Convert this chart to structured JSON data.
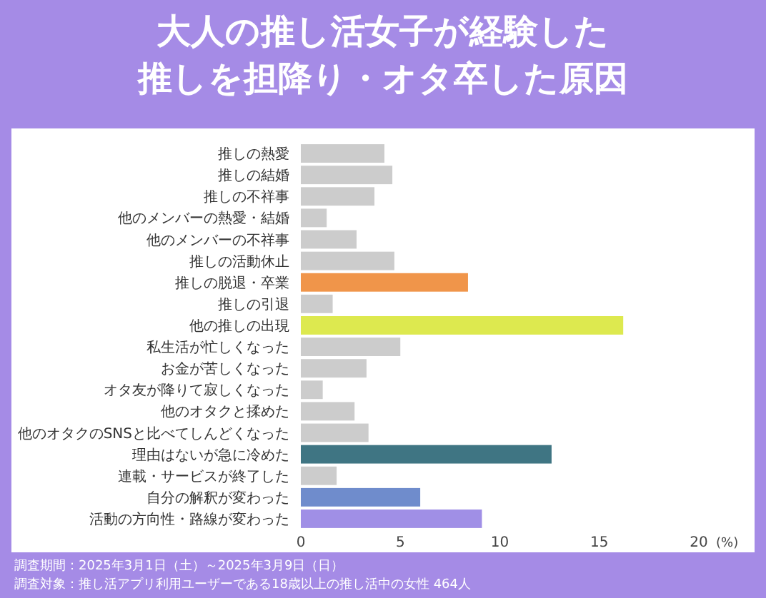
{
  "chart_data": {
    "type": "bar",
    "orientation": "horizontal",
    "title": "大人の推し活女子が経験した推しを担降り・オタ卒した原因",
    "xlabel": "(%)",
    "categories": [
      "推しの熱愛",
      "推しの結婚",
      "推しの不祥事",
      "他のメンバーの熱愛・結婚",
      "他のメンバーの不祥事",
      "推しの活動休止",
      "推しの脱退・卒業",
      "推しの引退",
      "他の推しの出現",
      "私生活が忙しくなった",
      "お金が苦しくなった",
      "オタ友が降りて寂しくなった",
      "他のオタクと揉めた",
      "他のオタクのSNSと比べてしんどくなった",
      "理由はないが急に冷めた",
      "連載・サービスが終了した",
      "自分の解釈が変わった",
      "活動の方向性・路線が変わった"
    ],
    "values": [
      4.2,
      4.6,
      3.7,
      1.3,
      2.8,
      4.7,
      8.4,
      1.6,
      16.2,
      5.0,
      3.3,
      1.1,
      2.7,
      3.4,
      12.6,
      1.8,
      6.0,
      9.1
    ],
    "colors": [
      "#cccccc",
      "#cccccc",
      "#cccccc",
      "#cccccc",
      "#cccccc",
      "#cccccc",
      "#f0954a",
      "#cccccc",
      "#dde94f",
      "#cccccc",
      "#cccccc",
      "#cccccc",
      "#cccccc",
      "#cccccc",
      "#3f7583",
      "#cccccc",
      "#6f8ccc",
      "#a08fe6"
    ],
    "xlim": [
      0,
      20
    ],
    "xticks": [
      0,
      5,
      10,
      15,
      20
    ],
    "grid": false,
    "annotations": [
      "調査期間：2025年3月1日（土）～2025年3月9日（日）",
      "調査対象：推し活アプリ利用ユーザーである18歳以上の推し活中の女性 464人"
    ]
  }
}
